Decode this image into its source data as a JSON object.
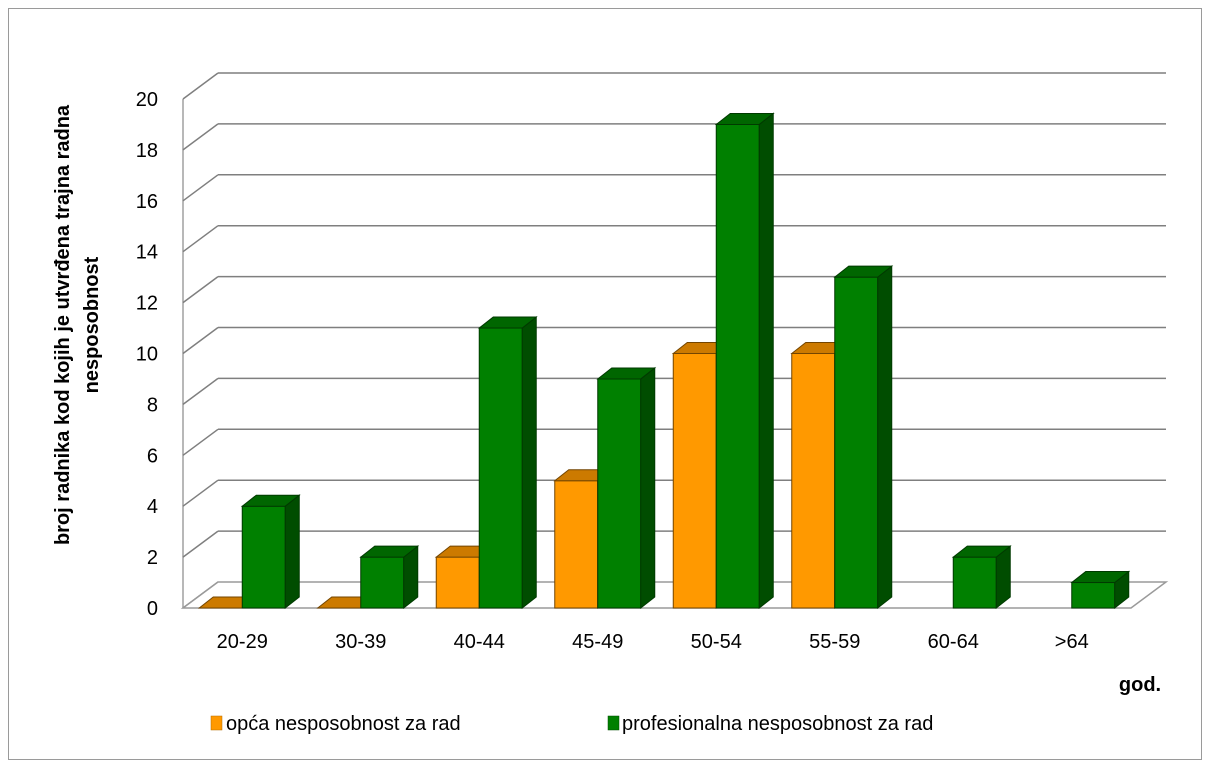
{
  "chart_data": {
    "type": "bar",
    "categories": [
      "20-29",
      "30-39",
      "40-44",
      "45-49",
      "50-54",
      "55-59",
      "60-64",
      ">64"
    ],
    "series": [
      {
        "name": "opća nesposobnost za rad",
        "values": [
          0,
          0,
          2,
          5,
          10,
          10,
          null,
          null
        ],
        "color": "#FF9900"
      },
      {
        "name": "profesionalna nesposobnost za rad",
        "values": [
          4,
          2,
          11,
          9,
          19,
          13,
          2,
          1
        ],
        "color": "#008000"
      }
    ],
    "ylabel_lines": [
      "broj radnika kod kojih je utvrđena trajna radna",
      "nesposobnost"
    ],
    "xlabel": "god.",
    "ylim": [
      0,
      20
    ],
    "yticks": [
      0,
      2,
      4,
      6,
      8,
      10,
      12,
      14,
      16,
      18,
      20
    ],
    "grid": true,
    "legend_position": "bottom",
    "style": "3d-clustered-column"
  }
}
